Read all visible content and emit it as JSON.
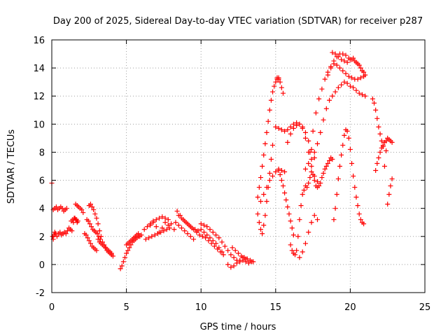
{
  "chart_data": {
    "type": "scatter",
    "title": "Day 200 of 2025, Sidereal Day-to-day VTEC variation (SDTVAR) for receiver p287",
    "xlabel": "GPS time / hours",
    "ylabel": "SDTVAR / TECUs",
    "xlim": [
      0,
      25
    ],
    "ylim": [
      -2,
      16
    ],
    "xticks": [
      0,
      5,
      10,
      15,
      20,
      25
    ],
    "yticks": [
      -2,
      0,
      2,
      4,
      6,
      8,
      10,
      12,
      14,
      16
    ],
    "grid": true,
    "marker": "+",
    "color": "#ff0000",
    "series": [
      {
        "name": "SDTVAR",
        "x": [
          0.0,
          0.1,
          0.2,
          0.3,
          0.4,
          0.5,
          0.6,
          0.7,
          0.8,
          0.9,
          1.0,
          0.05,
          0.15,
          0.25,
          0.35,
          0.45,
          0.55,
          0.65,
          0.75,
          0.85,
          0.95,
          1.05,
          1.15,
          1.25,
          1.35,
          1.45,
          1.55,
          1.65,
          1.75,
          0.1,
          0.2,
          1.6,
          1.7,
          1.8,
          1.9,
          2.0,
          2.1,
          1.3,
          1.4,
          1.5,
          1.6,
          1.7,
          2.2,
          2.3,
          2.4,
          2.5,
          2.6,
          2.7,
          2.8,
          2.9,
          3.0,
          2.35,
          2.45,
          2.55,
          2.65,
          2.75,
          2.85,
          2.95,
          3.05,
          3.15,
          3.25,
          2.5,
          2.6,
          2.7,
          2.8,
          2.9,
          3.0,
          3.1,
          3.2,
          3.3,
          3.4,
          3.5,
          3.6,
          3.7,
          3.8,
          3.9,
          4.0,
          3.1,
          3.2,
          3.3,
          3.4,
          3.5,
          3.6,
          3.7,
          3.8,
          3.9,
          4.0,
          4.1,
          4.6,
          4.7,
          4.8,
          4.9,
          5.0,
          5.1,
          5.2,
          5.3,
          5.4,
          5.5,
          5.6,
          5.7,
          5.8,
          5.9,
          6.0,
          5.0,
          5.1,
          5.2,
          5.3,
          5.4,
          5.5,
          5.6,
          5.7,
          5.8,
          6.2,
          6.4,
          6.6,
          6.8,
          7.0,
          7.2,
          7.4,
          7.6,
          7.8,
          6.3,
          6.5,
          6.7,
          6.9,
          7.1,
          7.3,
          7.5,
          7.7,
          7.9,
          6.6,
          6.8,
          7.0,
          7.2,
          7.4,
          7.6,
          7.8,
          8.0,
          8.2,
          8.4,
          8.6,
          8.8,
          9.0,
          9.2,
          9.4,
          9.6,
          9.8,
          8.5,
          8.7,
          8.9,
          9.1,
          9.3,
          9.5,
          9.7,
          9.9,
          8.3,
          8.5,
          8.7,
          8.9,
          9.1,
          9.3,
          9.5,
          10.0,
          10.2,
          10.4,
          10.6,
          10.8,
          11.0,
          11.2,
          11.4,
          11.6,
          11.8,
          10.1,
          10.3,
          10.5,
          10.7,
          10.9,
          11.1,
          11.3,
          11.5,
          10.0,
          10.2,
          10.4,
          10.6,
          10.8,
          11.0,
          11.2,
          11.4,
          12.0,
          12.2,
          12.4,
          12.6,
          12.8,
          13.0,
          13.2,
          13.4,
          12.1,
          12.3,
          12.5,
          12.7,
          12.9,
          13.1,
          13.3,
          13.5,
          11.8,
          12.0,
          12.2,
          12.4,
          12.6,
          12.8,
          13.0,
          13.8,
          13.9,
          14.0,
          14.1,
          14.2,
          14.3,
          14.4,
          14.5,
          14.6,
          14.7,
          14.8,
          13.8,
          13.9,
          14.0,
          14.1,
          14.2,
          14.3,
          14.4,
          14.5,
          14.6,
          14.7,
          14.8,
          14.9,
          15.0,
          15.1,
          15.2,
          15.3,
          15.4,
          15.5,
          14.0,
          14.2,
          14.4,
          14.6,
          14.8,
          15.0,
          15.2,
          15.4,
          15.6,
          15.8,
          16.0,
          16.2,
          16.4,
          16.6,
          16.8,
          17.0,
          17.2,
          17.4,
          17.6,
          15.0,
          15.2,
          15.4,
          15.6,
          15.8,
          16.0,
          16.2,
          16.4,
          16.6,
          16.8,
          17.0,
          17.2,
          17.4,
          17.6,
          17.8,
          15.2,
          15.3,
          15.4,
          15.5,
          15.6,
          15.7,
          15.8,
          15.9,
          16.0,
          16.1,
          16.2,
          15.1,
          15.2,
          16.0,
          16.1,
          16.2,
          16.3,
          16.4,
          16.5,
          16.6,
          16.7,
          16.8,
          16.9,
          17.0,
          17.1,
          17.2,
          17.3,
          17.4,
          17.5,
          17.6,
          17.7,
          17.8,
          17.9,
          18.0,
          18.1,
          18.2,
          18.3,
          18.4,
          18.5,
          18.6,
          18.7,
          18.8,
          17.0,
          17.2,
          17.4,
          17.6,
          17.8,
          18.0,
          18.2,
          18.4,
          18.6,
          18.8,
          19.0,
          19.2,
          19.4,
          19.6,
          19.8,
          20.0,
          20.2,
          20.4,
          20.6,
          20.8,
          21.0,
          18.5,
          18.7,
          18.9,
          19.1,
          19.3,
          19.5,
          19.7,
          19.9,
          20.1,
          20.3,
          20.5,
          20.7,
          20.9,
          18.8,
          19.0,
          19.2,
          19.4,
          19.6,
          19.8,
          20.0,
          20.2,
          20.4,
          20.6,
          20.8,
          21.0,
          17.3,
          17.5,
          17.7,
          17.9,
          18.1,
          18.3,
          18.5,
          18.7,
          18.9,
          19.1,
          19.3,
          19.5,
          19.7,
          19.9,
          20.1,
          20.3,
          20.5,
          20.7,
          20.9,
          18.9,
          19.0,
          19.1,
          19.2,
          19.3,
          19.4,
          19.5,
          19.6,
          19.7,
          19.8,
          19.9,
          20.0,
          20.1,
          20.2,
          20.3,
          20.4,
          20.5,
          20.6,
          20.7,
          20.8,
          20.9,
          21.5,
          21.6,
          21.7,
          21.8,
          21.9,
          22.0,
          22.1,
          22.2,
          21.7,
          21.8,
          21.9,
          22.0,
          22.1,
          22.2,
          22.3,
          22.4,
          22.5,
          22.6,
          22.7,
          22.8,
          22.5,
          22.6,
          22.7,
          22.8,
          22.4,
          22.3,
          16.6,
          16.8,
          17.0,
          17.2,
          17.4,
          17.6,
          17.8
        ],
        "y": [
          5.8,
          3.9,
          4.0,
          4.1,
          3.9,
          4.0,
          4.1,
          4.0,
          3.8,
          3.9,
          4.0,
          2.0,
          2.1,
          2.2,
          2.0,
          2.2,
          2.3,
          2.1,
          2.2,
          2.3,
          2.2,
          2.4,
          2.6,
          2.5,
          2.4,
          3.0,
          3.3,
          3.2,
          3.1,
          1.8,
          2.3,
          4.3,
          4.2,
          4.1,
          4.0,
          3.9,
          3.7,
          3.1,
          3.2,
          3.3,
          3.2,
          3.0,
          2.2,
          2.1,
          1.9,
          1.7,
          1.5,
          1.3,
          1.2,
          1.1,
          1.0,
          3.2,
          3.1,
          2.9,
          2.7,
          2.5,
          2.4,
          2.3,
          2.2,
          2.0,
          1.8,
          4.2,
          4.3,
          4.1,
          3.9,
          3.6,
          3.3,
          2.9,
          2.4,
          2.0,
          1.6,
          1.4,
          1.2,
          1.0,
          0.9,
          0.8,
          0.7,
          1.8,
          1.6,
          1.5,
          1.4,
          1.3,
          1.2,
          1.1,
          1.0,
          0.9,
          0.8,
          0.6,
          -0.3,
          -0.1,
          0.2,
          0.5,
          0.8,
          1.0,
          1.2,
          1.4,
          1.6,
          1.7,
          1.8,
          1.9,
          2.0,
          2.0,
          2.1,
          1.4,
          1.5,
          1.6,
          1.7,
          1.8,
          1.9,
          2.0,
          2.1,
          2.2,
          2.5,
          2.7,
          2.9,
          3.1,
          3.2,
          3.3,
          3.4,
          3.3,
          3.2,
          1.8,
          1.9,
          2.0,
          2.1,
          2.2,
          2.3,
          2.4,
          2.5,
          2.6,
          2.8,
          3.0,
          2.7,
          2.3,
          2.6,
          3.0,
          2.8,
          2.9,
          2.5,
          3.8,
          3.5,
          3.2,
          3.0,
          2.8,
          2.6,
          2.5,
          2.4,
          3.5,
          3.3,
          3.1,
          2.9,
          2.7,
          2.5,
          2.3,
          2.1,
          3.0,
          2.8,
          2.6,
          2.4,
          2.2,
          2.0,
          1.8,
          2.9,
          2.8,
          2.7,
          2.5,
          2.3,
          2.1,
          1.9,
          1.6,
          1.3,
          1.0,
          2.0,
          1.9,
          1.7,
          1.5,
          1.3,
          1.1,
          0.9,
          0.7,
          2.5,
          2.3,
          2.1,
          1.9,
          1.7,
          1.5,
          1.2,
          0.9,
          0.7,
          0.5,
          0.3,
          0.2,
          0.3,
          0.2,
          0.1,
          0.2,
          1.2,
          1.0,
          0.8,
          0.6,
          0.5,
          0.4,
          0.3,
          0.2,
          0.0,
          -0.2,
          -0.1,
          0.1,
          0.3,
          0.5,
          0.4,
          3.6,
          3.0,
          2.5,
          2.2,
          2.8,
          3.5,
          4.5,
          5.5,
          6.5,
          7.5,
          8.5,
          4.8,
          5.5,
          6.2,
          7.0,
          7.8,
          8.6,
          9.4,
          10.2,
          11.0,
          11.7,
          12.3,
          12.7,
          13.0,
          13.2,
          13.3,
          13.0,
          12.6,
          12.2,
          4.5,
          5.0,
          5.5,
          6.0,
          6.3,
          6.6,
          6.8,
          6.7,
          6.6,
          8.7,
          9.3,
          9.7,
          9.9,
          10.0,
          9.8,
          9.4,
          8.8,
          8.2,
          7.6,
          9.8,
          9.7,
          9.6,
          9.5,
          9.6,
          9.8,
          10.0,
          10.1,
          10.0,
          9.7,
          9.0,
          8.0,
          7.0,
          6.3,
          5.9,
          6.7,
          6.4,
          6.0,
          5.6,
          5.1,
          4.6,
          4.1,
          3.6,
          3.1,
          2.6,
          2.1,
          13.3,
          13.2,
          1.4,
          1.0,
          0.8,
          0.7,
          1.0,
          2.0,
          3.2,
          4.2,
          5.0,
          5.3,
          5.6,
          5.5,
          5.8,
          6.2,
          6.6,
          6.4,
          6.0,
          5.6,
          5.5,
          5.6,
          5.8,
          6.2,
          6.5,
          6.8,
          7.0,
          7.2,
          7.4,
          7.6,
          7.5,
          6.8,
          7.2,
          7.5,
          8.0,
          8.6,
          9.4,
          10.3,
          11.1,
          11.7,
          12.0,
          12.3,
          12.6,
          12.8,
          13.0,
          12.9,
          12.7,
          12.6,
          12.4,
          12.2,
          12.1,
          12.0,
          13.5,
          14.0,
          14.5,
          14.8,
          15.0,
          15.0,
          14.9,
          14.7,
          14.6,
          14.5,
          14.3,
          14.0,
          13.7,
          15.1,
          15.0,
          14.8,
          14.6,
          14.5,
          14.4,
          14.6,
          14.7,
          14.4,
          14.2,
          13.8,
          13.5,
          8.0,
          9.5,
          10.8,
          11.8,
          12.5,
          13.2,
          13.7,
          14.1,
          14.3,
          14.2,
          14.0,
          13.8,
          13.6,
          13.4,
          13.3,
          13.2,
          13.2,
          13.3,
          13.4,
          3.2,
          4.0,
          5.0,
          6.1,
          7.0,
          7.8,
          8.5,
          9.2,
          9.6,
          9.5,
          9.0,
          8.2,
          7.2,
          6.3,
          5.5,
          4.8,
          4.2,
          3.6,
          3.2,
          3.0,
          2.9,
          11.8,
          11.5,
          11.0,
          10.4,
          9.8,
          9.3,
          8.8,
          8.4,
          6.7,
          7.2,
          7.6,
          8.0,
          8.3,
          8.5,
          8.7,
          8.8,
          9.0,
          8.9,
          8.8,
          8.7,
          4.3,
          5.0,
          5.6,
          6.1,
          8.1,
          7.0,
          0.5,
          0.9,
          1.5,
          2.3,
          3.0,
          3.5,
          3.2
        ]
      }
    ]
  }
}
